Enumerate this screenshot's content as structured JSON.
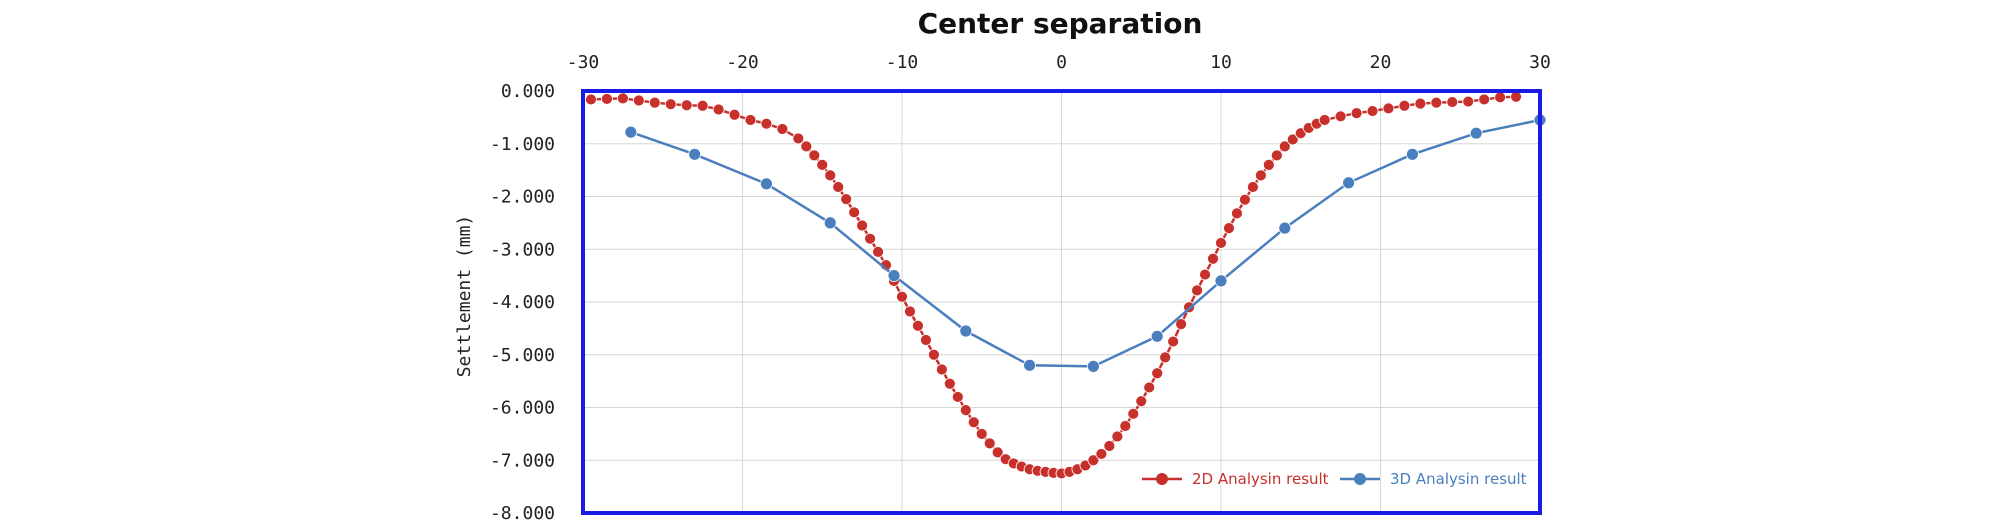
{
  "chart_data": {
    "type": "line",
    "title": "Center separation",
    "xlabel": "",
    "ylabel": "Settlement (mm)",
    "xlim": [
      -30,
      30
    ],
    "ylim": [
      -8,
      0
    ],
    "x_ticks": [
      "-30",
      "-20",
      "-10",
      "0",
      "10",
      "20",
      "30"
    ],
    "x_tick_values": [
      -30,
      -20,
      -10,
      0,
      10,
      20,
      30
    ],
    "y_ticks": [
      "0.000",
      "-1.000",
      "-2.000",
      "-3.000",
      "-4.000",
      "-5.000",
      "-6.000",
      "-7.000",
      "-8.000"
    ],
    "y_tick_values": [
      0,
      -1,
      -2,
      -3,
      -4,
      -5,
      -6,
      -7,
      -8
    ],
    "x_axis_position": "top",
    "grid": true,
    "legend_position": "bottom-right",
    "series": [
      {
        "name": "2D Analysin result",
        "color": "#c8302c",
        "x": [
          -29.5,
          -28.5,
          -27.5,
          -26.5,
          -25.5,
          -24.5,
          -23.5,
          -22.5,
          -21.5,
          -20.5,
          -19.5,
          -18.5,
          -17.5,
          -16.5,
          -16,
          -15.5,
          -15,
          -14.5,
          -14,
          -13.5,
          -13,
          -12.5,
          -12,
          -11.5,
          -11,
          -10.5,
          -10,
          -9.5,
          -9,
          -8.5,
          -8,
          -7.5,
          -7,
          -6.5,
          -6,
          -5.5,
          -5,
          -4.5,
          -4,
          -3.5,
          -3,
          -2.5,
          -2,
          -1.5,
          -1,
          -0.5,
          0,
          0.5,
          1,
          1.5,
          2,
          2.5,
          3,
          3.5,
          4,
          4.5,
          5,
          5.5,
          6,
          6.5,
          7,
          7.5,
          8,
          8.5,
          9,
          9.5,
          10,
          10.5,
          11,
          11.5,
          12,
          12.5,
          13,
          13.5,
          14,
          14.5,
          15,
          15.5,
          16,
          16.5,
          17.5,
          18.5,
          19.5,
          20.5,
          21.5,
          22.5,
          23.5,
          24.5,
          25.5,
          26.5,
          27.5,
          28.5
        ],
        "y": [
          -0.16,
          -0.15,
          -0.14,
          -0.18,
          -0.22,
          -0.25,
          -0.27,
          -0.28,
          -0.35,
          -0.45,
          -0.55,
          -0.62,
          -0.72,
          -0.9,
          -1.05,
          -1.22,
          -1.4,
          -1.6,
          -1.82,
          -2.05,
          -2.3,
          -2.55,
          -2.8,
          -3.05,
          -3.3,
          -3.6,
          -3.9,
          -4.18,
          -4.45,
          -4.72,
          -5.0,
          -5.28,
          -5.55,
          -5.8,
          -6.05,
          -6.28,
          -6.5,
          -6.68,
          -6.85,
          -6.98,
          -7.06,
          -7.12,
          -7.17,
          -7.2,
          -7.22,
          -7.24,
          -7.25,
          -7.22,
          -7.17,
          -7.1,
          -7.0,
          -6.88,
          -6.73,
          -6.55,
          -6.35,
          -6.12,
          -5.88,
          -5.62,
          -5.35,
          -5.05,
          -4.75,
          -4.42,
          -4.1,
          -3.78,
          -3.48,
          -3.18,
          -2.88,
          -2.6,
          -2.32,
          -2.06,
          -1.82,
          -1.6,
          -1.4,
          -1.22,
          -1.05,
          -0.92,
          -0.8,
          -0.7,
          -0.62,
          -0.55,
          -0.48,
          -0.42,
          -0.38,
          -0.33,
          -0.28,
          -0.24,
          -0.22,
          -0.21,
          -0.2,
          -0.16,
          -0.12,
          -0.11
        ]
      },
      {
        "name": "3D Analysin result",
        "color": "#4a7fbd",
        "x": [
          -27,
          -23,
          -18.5,
          -14.5,
          -10.5,
          -6,
          -2,
          2,
          6,
          10,
          14,
          18,
          22,
          26,
          30
        ],
        "y": [
          -0.78,
          -1.2,
          -1.76,
          -2.5,
          -3.5,
          -4.55,
          -5.2,
          -5.22,
          -4.65,
          -3.6,
          -2.6,
          -1.74,
          -1.2,
          -0.8,
          -0.55
        ]
      }
    ]
  }
}
